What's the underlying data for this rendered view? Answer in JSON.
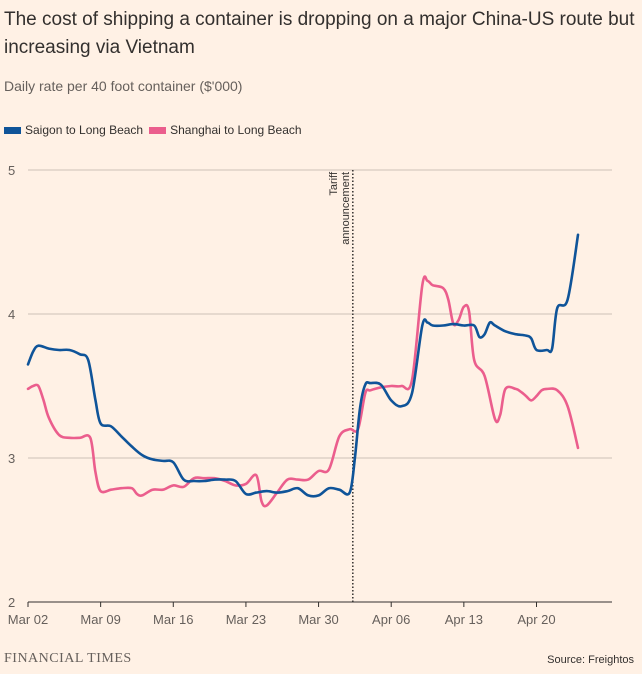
{
  "title": "The cost of shipping a container is dropping on a major China-US route but increasing via Vietnam",
  "subtitle": "Daily rate per 40 foot container ($'000)",
  "brand": "FINANCIAL TIMES",
  "source": "Source: Freightos",
  "colors": {
    "background": "#fff1e5",
    "saigon": "#0f5499",
    "shanghai": "#eb5e8d",
    "grid": "#ccc1b7",
    "axis": "#33302e"
  },
  "chart_data": {
    "type": "line",
    "x_axis": {
      "start": "Mar 02",
      "end": "Apr 22",
      "xlim": [
        0,
        53
      ],
      "ticks": [
        {
          "day": 0,
          "label": "Mar 02"
        },
        {
          "day": 7,
          "label": "Mar 09"
        },
        {
          "day": 14,
          "label": "Mar 16"
        },
        {
          "day": 21,
          "label": "Mar 23"
        },
        {
          "day": 28,
          "label": "Mar 30"
        },
        {
          "day": 35,
          "label": "Apr 06"
        },
        {
          "day": 42,
          "label": "Apr 13"
        },
        {
          "day": 49,
          "label": "Apr 20"
        }
      ]
    },
    "y_axis": {
      "ylim": [
        2,
        5
      ],
      "ticks": [
        2,
        3,
        4,
        5
      ],
      "grid": true
    },
    "annotation": {
      "day": 31.3,
      "text_line1": "Tariff",
      "text_line2": "announcement"
    },
    "legend_position": "top-left",
    "series": [
      {
        "name": "Saigon to Long Beach",
        "color": "#0f5499",
        "points": [
          [
            0,
            3.65
          ],
          [
            0.5,
            3.74
          ],
          [
            1,
            3.78
          ],
          [
            2,
            3.76
          ],
          [
            3,
            3.75
          ],
          [
            4,
            3.75
          ],
          [
            5,
            3.72
          ],
          [
            5.8,
            3.68
          ],
          [
            6.5,
            3.4
          ],
          [
            7,
            3.24
          ],
          [
            8,
            3.22
          ],
          [
            9,
            3.15
          ],
          [
            10,
            3.08
          ],
          [
            11,
            3.02
          ],
          [
            12,
            2.99
          ],
          [
            13,
            2.98
          ],
          [
            14,
            2.97
          ],
          [
            15,
            2.85
          ],
          [
            16,
            2.84
          ],
          [
            17,
            2.84
          ],
          [
            18,
            2.85
          ],
          [
            19,
            2.85
          ],
          [
            20,
            2.84
          ],
          [
            21,
            2.75
          ],
          [
            22,
            2.76
          ],
          [
            23,
            2.77
          ],
          [
            24,
            2.76
          ],
          [
            25,
            2.77
          ],
          [
            26,
            2.79
          ],
          [
            27,
            2.74
          ],
          [
            28,
            2.74
          ],
          [
            29,
            2.79
          ],
          [
            30,
            2.78
          ],
          [
            31,
            2.76
          ],
          [
            31.5,
            3.0
          ],
          [
            32,
            3.35
          ],
          [
            32.5,
            3.51
          ],
          [
            33,
            3.52
          ],
          [
            34,
            3.51
          ],
          [
            35,
            3.4
          ],
          [
            36,
            3.36
          ],
          [
            37,
            3.45
          ],
          [
            38,
            3.92
          ],
          [
            38.5,
            3.94
          ],
          [
            39,
            3.92
          ],
          [
            40,
            3.92
          ],
          [
            41,
            3.93
          ],
          [
            42,
            3.92
          ],
          [
            43,
            3.92
          ],
          [
            43.5,
            3.84
          ],
          [
            44,
            3.86
          ],
          [
            44.5,
            3.94
          ],
          [
            45,
            3.92
          ],
          [
            46,
            3.88
          ],
          [
            47,
            3.86
          ],
          [
            48,
            3.85
          ],
          [
            48.5,
            3.83
          ],
          [
            49,
            3.75
          ],
          [
            50,
            3.75
          ],
          [
            50.5,
            3.76
          ],
          [
            51,
            4.04
          ],
          [
            52,
            4.1
          ],
          [
            53,
            4.55
          ]
        ]
      },
      {
        "name": "Shanghai to Long Beach",
        "color": "#eb5e8d",
        "points": [
          [
            0,
            3.48
          ],
          [
            0.5,
            3.5
          ],
          [
            1,
            3.5
          ],
          [
            1.5,
            3.4
          ],
          [
            2,
            3.28
          ],
          [
            3,
            3.16
          ],
          [
            4,
            3.14
          ],
          [
            5,
            3.14
          ],
          [
            6,
            3.14
          ],
          [
            6.5,
            2.9
          ],
          [
            7,
            2.77
          ],
          [
            8,
            2.78
          ],
          [
            9,
            2.79
          ],
          [
            10,
            2.79
          ],
          [
            10.5,
            2.75
          ],
          [
            11,
            2.74
          ],
          [
            12,
            2.78
          ],
          [
            13,
            2.78
          ],
          [
            14,
            2.81
          ],
          [
            15,
            2.8
          ],
          [
            16,
            2.86
          ],
          [
            17,
            2.86
          ],
          [
            18,
            2.86
          ],
          [
            19,
            2.84
          ],
          [
            20,
            2.81
          ],
          [
            21,
            2.82
          ],
          [
            22,
            2.88
          ],
          [
            22.5,
            2.7
          ],
          [
            23,
            2.67
          ],
          [
            24,
            2.76
          ],
          [
            25,
            2.85
          ],
          [
            26,
            2.85
          ],
          [
            27,
            2.85
          ],
          [
            28,
            2.91
          ],
          [
            29,
            2.92
          ],
          [
            30,
            3.15
          ],
          [
            31,
            3.2
          ],
          [
            31.8,
            3.2
          ],
          [
            32.5,
            3.45
          ],
          [
            33,
            3.47
          ],
          [
            34,
            3.49
          ],
          [
            35,
            3.5
          ],
          [
            36,
            3.5
          ],
          [
            37,
            3.54
          ],
          [
            38,
            4.2
          ],
          [
            38.5,
            4.23
          ],
          [
            39,
            4.2
          ],
          [
            40,
            4.18
          ],
          [
            40.5,
            4.1
          ],
          [
            41,
            3.93
          ],
          [
            41.5,
            3.96
          ],
          [
            42,
            4.05
          ],
          [
            42.5,
            4.02
          ],
          [
            43,
            3.68
          ],
          [
            44,
            3.57
          ],
          [
            45,
            3.27
          ],
          [
            45.5,
            3.3
          ],
          [
            46,
            3.48
          ],
          [
            47,
            3.48
          ],
          [
            47.5,
            3.46
          ],
          [
            48,
            3.43
          ],
          [
            48.5,
            3.4
          ],
          [
            49,
            3.43
          ],
          [
            49.5,
            3.47
          ],
          [
            50,
            3.48
          ],
          [
            51,
            3.47
          ],
          [
            52,
            3.36
          ],
          [
            53,
            3.07
          ]
        ]
      }
    ]
  }
}
